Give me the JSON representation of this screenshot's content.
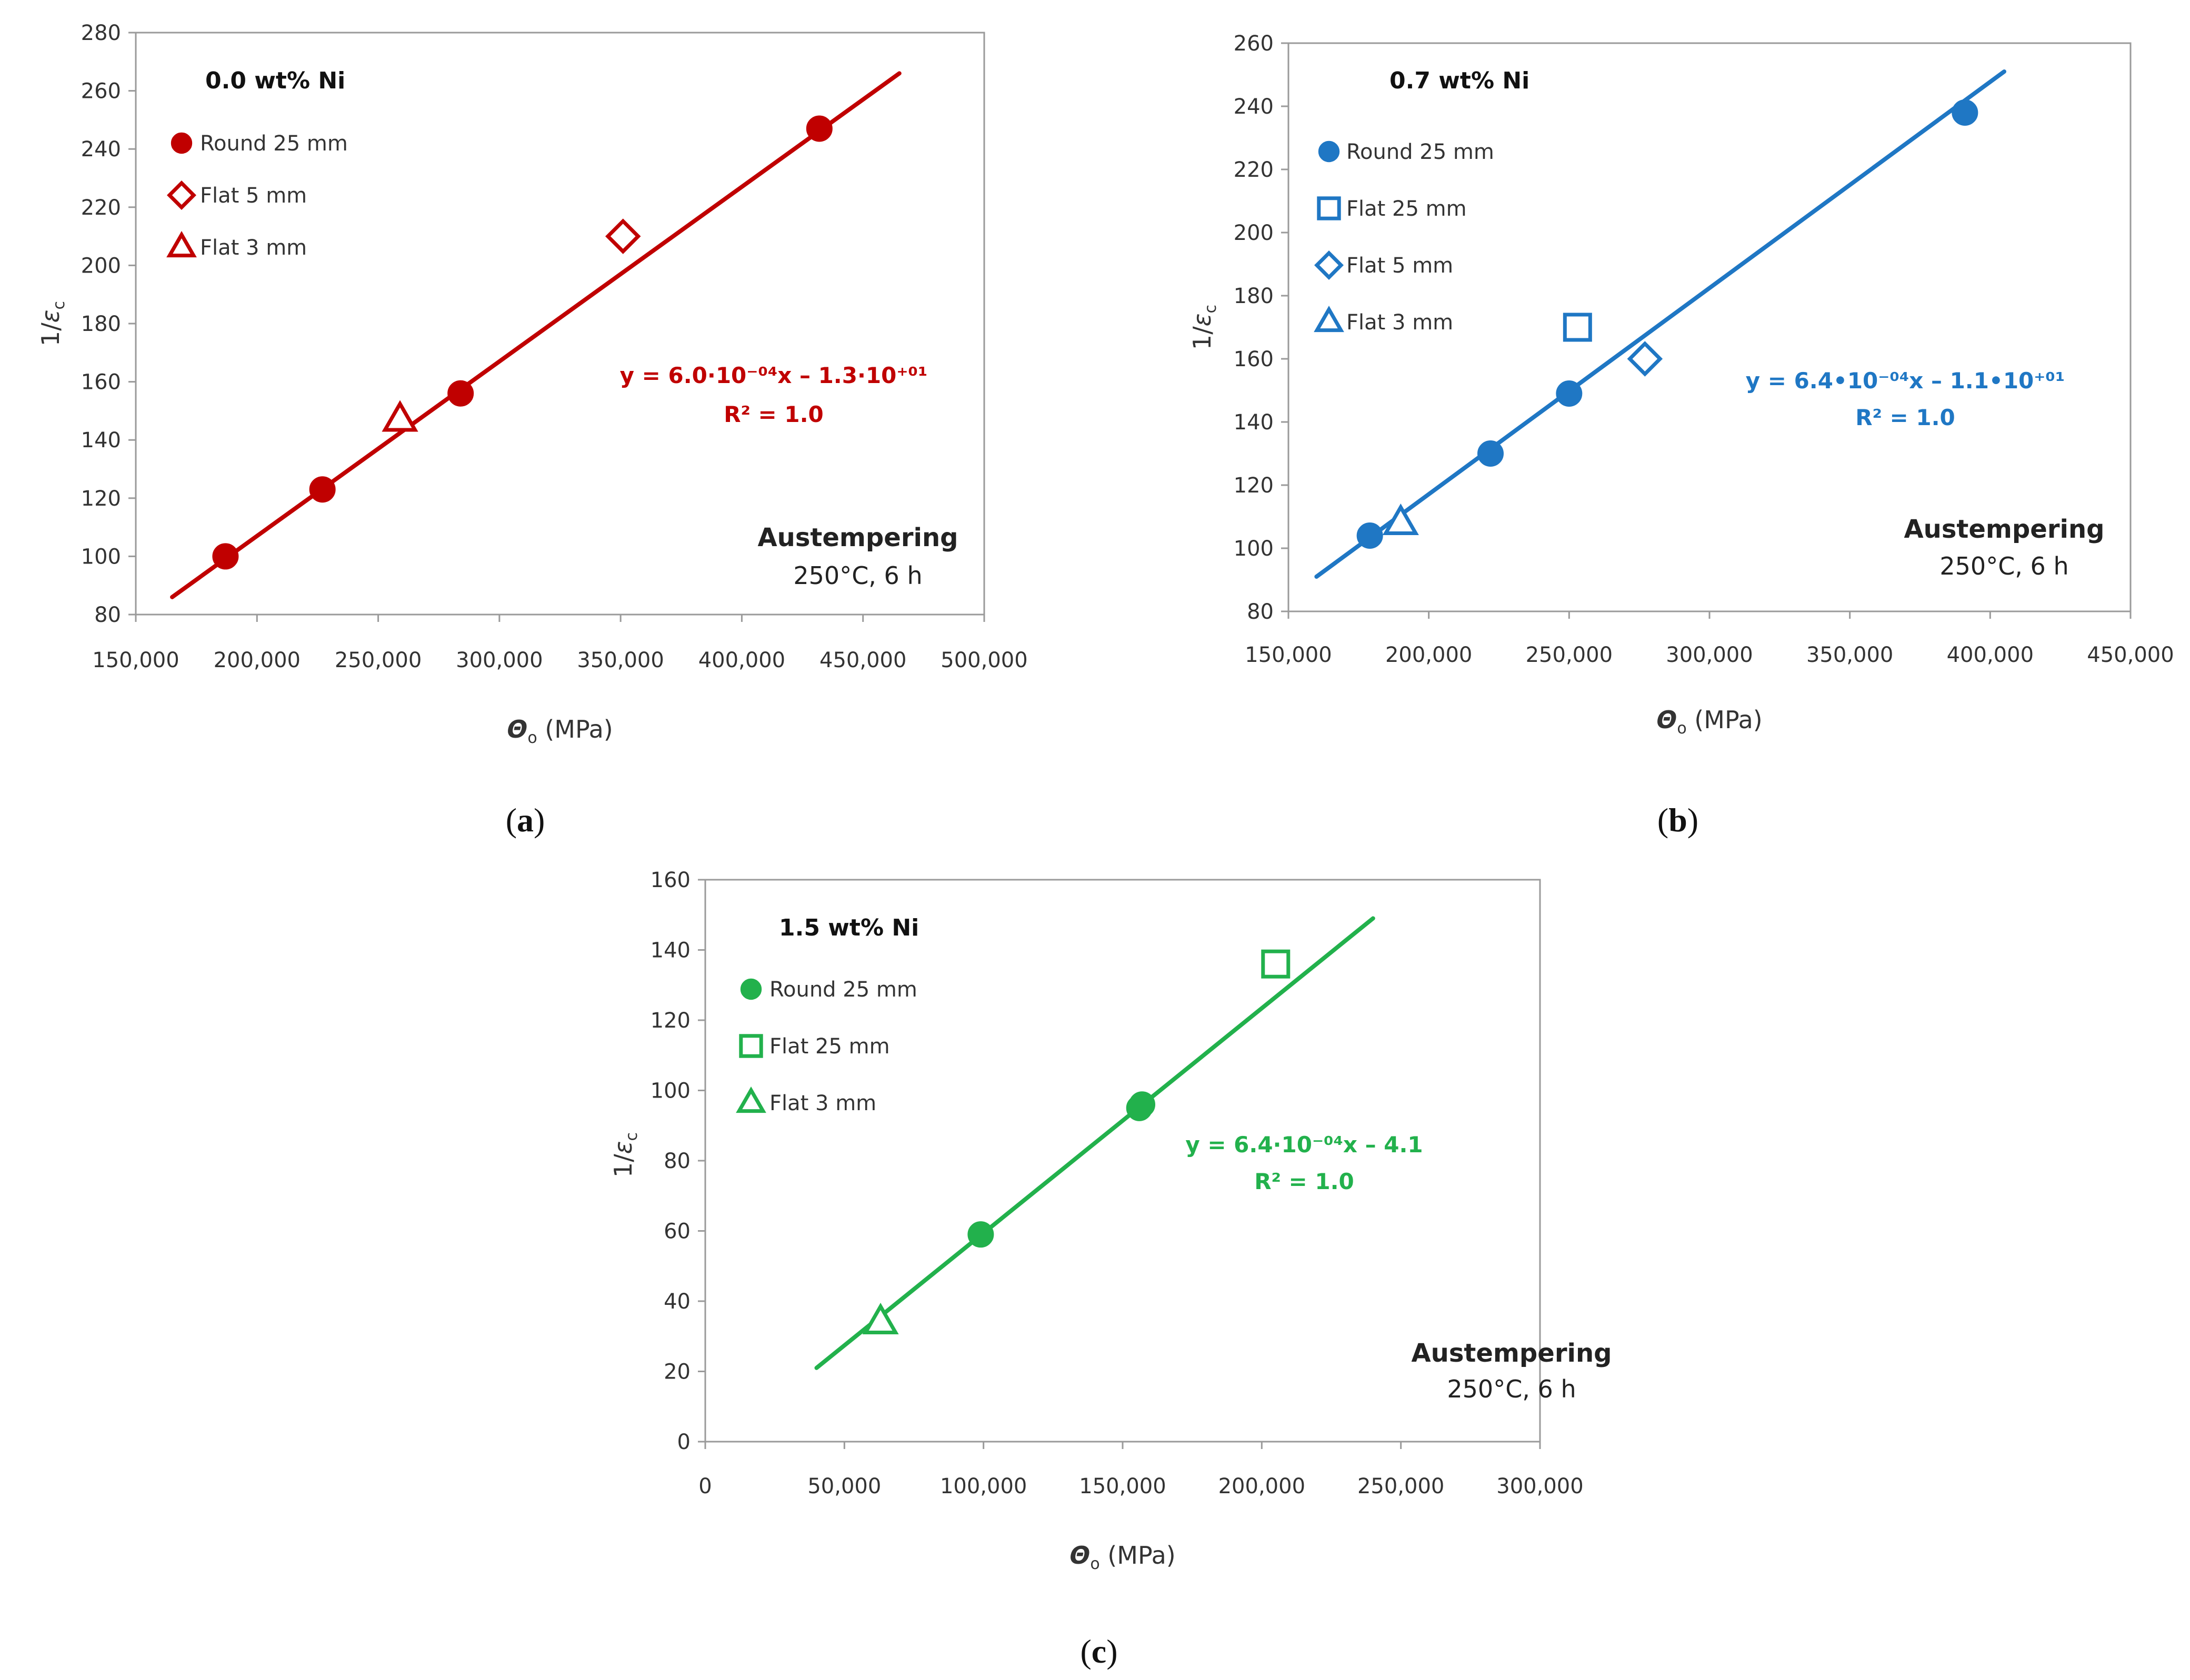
{
  "chart_data": [
    {
      "type": "scatter",
      "panel": "(a)",
      "panel_letter": "a",
      "title": "0.0 wt% Ni",
      "xlabel": "Θo (MPa)",
      "xlabel_symbol": "Θ",
      "xlabel_sub": "o",
      "xlabel_rest": " (MPa)",
      "ylabel_pre": "1/",
      "ylabel_symbol": "ε",
      "ylabel_sub": "c",
      "xlim": [
        150000,
        500000
      ],
      "ylim": [
        80,
        280
      ],
      "xticks": [
        150000,
        200000,
        250000,
        300000,
        350000,
        400000,
        450000,
        500000
      ],
      "xtick_labels": [
        "150,000",
        "200,000",
        "250,000",
        "300,000",
        "350,000",
        "400,000",
        "450,000",
        "500,000"
      ],
      "yticks": [
        80,
        100,
        120,
        140,
        160,
        180,
        200,
        220,
        240,
        260,
        280
      ],
      "ytick_labels": [
        "80",
        "100",
        "120",
        "140",
        "160",
        "180",
        "200",
        "220",
        "240",
        "260",
        "280"
      ],
      "color": "#C00000",
      "series": [
        {
          "name": "Round 25 mm",
          "marker": "circle",
          "points": [
            [
              187000,
              100
            ],
            [
              227000,
              123
            ],
            [
              284000,
              156
            ],
            [
              432000,
              247
            ]
          ]
        },
        {
          "name": "Flat 5 mm",
          "marker": "diamond",
          "points": [
            [
              351000,
              210
            ]
          ]
        },
        {
          "name": "Flat 3 mm",
          "marker": "triangle",
          "points": [
            [
              259000,
              147
            ]
          ]
        }
      ],
      "fit_line": {
        "x": [
          165000,
          465000
        ],
        "y": [
          86,
          266
        ]
      },
      "equation": "y = 6.0·10⁻⁰⁴x – 1.3·10⁺⁰¹",
      "r_squared": "R² = 1.0",
      "annotation_title": "Austempering",
      "annotation_sub": "250°C, 6 h"
    },
    {
      "type": "scatter",
      "panel": "(b)",
      "panel_letter": "b",
      "title": "0.7 wt% Ni",
      "xlabel": "Θo (MPa)",
      "xlabel_symbol": "Θ",
      "xlabel_sub": "o",
      "xlabel_rest": " (MPa)",
      "ylabel_pre": "1/",
      "ylabel_symbol": "ε",
      "ylabel_sub": "c",
      "xlim": [
        150000,
        450000
      ],
      "ylim": [
        80,
        260
      ],
      "xticks": [
        150000,
        200000,
        250000,
        300000,
        350000,
        400000,
        450000
      ],
      "xtick_labels": [
        "150,000",
        "200,000",
        "250,000",
        "300,000",
        "350,000",
        "400,000",
        "450,000"
      ],
      "yticks": [
        80,
        100,
        120,
        140,
        160,
        180,
        200,
        220,
        240,
        260
      ],
      "ytick_labels": [
        "80",
        "100",
        "120",
        "140",
        "160",
        "180",
        "200",
        "220",
        "240",
        "260"
      ],
      "color": "#1F77C4",
      "series": [
        {
          "name": "Round 25 mm",
          "marker": "circle",
          "points": [
            [
              179000,
              104
            ],
            [
              222000,
              130
            ],
            [
              250000,
              149
            ],
            [
              391000,
              238
            ]
          ]
        },
        {
          "name": "Flat 25 mm",
          "marker": "square",
          "points": [
            [
              253000,
              170
            ]
          ]
        },
        {
          "name": "Flat 5 mm",
          "marker": "diamond",
          "points": [
            [
              277000,
              160
            ]
          ]
        },
        {
          "name": "Flat 3 mm",
          "marker": "triangle",
          "points": [
            [
              190000,
              108
            ]
          ]
        }
      ],
      "fit_line": {
        "x": [
          160000,
          405000
        ],
        "y": [
          91,
          251
        ]
      },
      "equation": "y = 6.4•10⁻⁰⁴x – 1.1•10⁺⁰¹",
      "r_squared": "R² = 1.0",
      "annotation_title": "Austempering",
      "annotation_sub": "250°C, 6 h"
    },
    {
      "type": "scatter",
      "panel": "(c)",
      "panel_letter": "c",
      "title": "1.5 wt% Ni",
      "xlabel": "Θo (MPa)",
      "xlabel_symbol": "Θ",
      "xlabel_sub": "o",
      "xlabel_rest": " (MPa)",
      "ylabel_pre": "1/",
      "ylabel_symbol": "ε",
      "ylabel_sub": "c",
      "xlim": [
        0,
        300000
      ],
      "ylim": [
        0,
        160
      ],
      "xticks": [
        0,
        50000,
        100000,
        150000,
        200000,
        250000,
        300000
      ],
      "xtick_labels": [
        "0",
        "50,000",
        "100,000",
        "150,000",
        "200,000",
        "250,000",
        "300,000"
      ],
      "yticks": [
        0,
        20,
        40,
        60,
        80,
        100,
        120,
        140,
        160
      ],
      "ytick_labels": [
        "0",
        "20",
        "40",
        "60",
        "80",
        "100",
        "120",
        "140",
        "160"
      ],
      "color": "#22B14C",
      "series": [
        {
          "name": "Round 25 mm",
          "marker": "circle",
          "points": [
            [
              99000,
              59
            ],
            [
              156000,
              95
            ],
            [
              157000,
              96
            ]
          ]
        },
        {
          "name": "Flat 25 mm",
          "marker": "square",
          "points": [
            [
              205000,
              136
            ]
          ]
        },
        {
          "name": "Flat 3 mm",
          "marker": "triangle",
          "points": [
            [
              63000,
              34
            ]
          ]
        }
      ],
      "fit_line": {
        "x": [
          40000,
          240000
        ],
        "y": [
          21,
          149
        ]
      },
      "equation": "y = 6.4·10⁻⁰⁴x – 4.1",
      "r_squared": "R² = 1.0",
      "annotation_title": "Austempering",
      "annotation_sub": "250°C, 6 h"
    }
  ]
}
